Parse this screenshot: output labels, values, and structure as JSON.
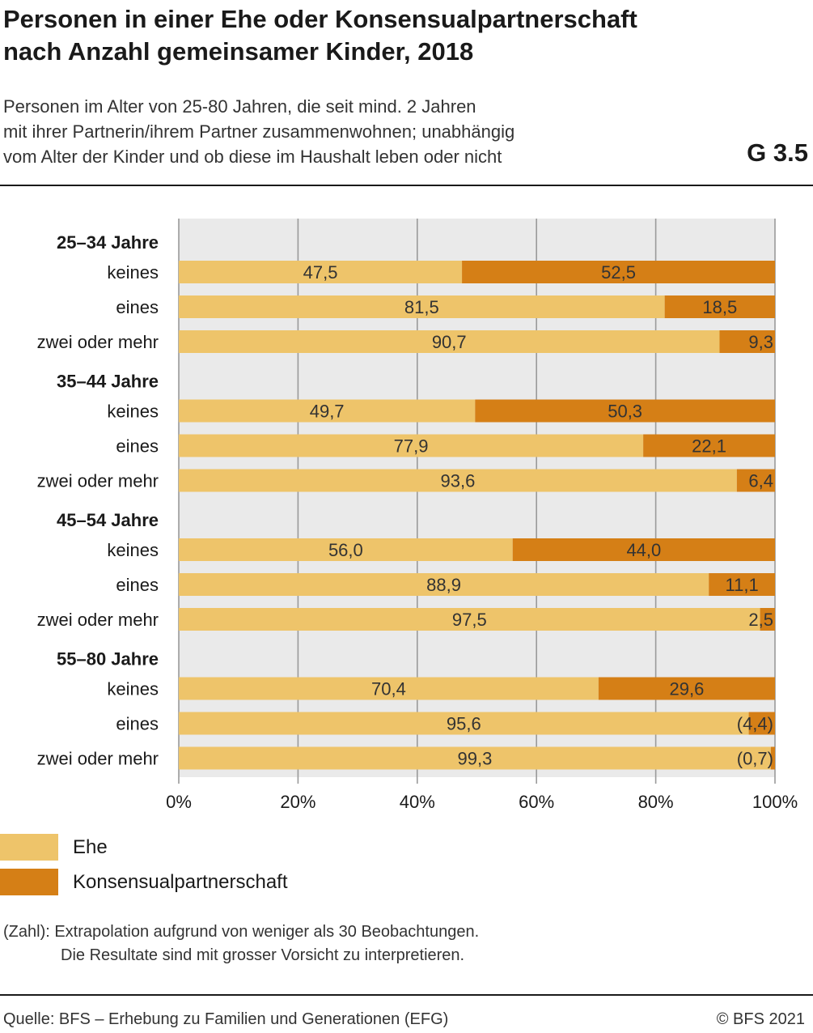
{
  "title_lines": [
    "Personen in einer Ehe oder Konsensualpartnerschaft",
    "nach Anzahl gemeinsamer Kinder, 2018"
  ],
  "subtitle_lines": [
    "Personen im Alter von 25-80 Jahren, die seit mind. 2 Jahren",
    "mit ihrer Partnerin/ihrem Partner zusammenwohnen; unabhängig",
    "vom Alter der Kinder und ob diese im Haushalt leben oder nicht"
  ],
  "chart_code": "G 3.5",
  "colors": {
    "ehe": "#eec46a",
    "konsensual": "#d57f16",
    "plot_bg": "#eaeaea",
    "grid": "#9a9a9a"
  },
  "chart_data": {
    "type": "bar",
    "orientation": "horizontal",
    "stacked": true,
    "xlim": [
      0,
      100
    ],
    "x_ticks": [
      "0%",
      "20%",
      "40%",
      "60%",
      "80%",
      "100%"
    ],
    "grid": true,
    "groups": [
      {
        "label": "25–34 Jahre",
        "rows": [
          {
            "label": "keines",
            "values": [
              47.5,
              52.5
            ],
            "labels": [
              "47,5",
              "52,5"
            ]
          },
          {
            "label": "eines",
            "values": [
              81.5,
              18.5
            ],
            "labels": [
              "81,5",
              "18,5"
            ]
          },
          {
            "label": "zwei oder mehr",
            "values": [
              90.7,
              9.3
            ],
            "labels": [
              "90,7",
              "9,3"
            ]
          }
        ]
      },
      {
        "label": "35–44 Jahre",
        "rows": [
          {
            "label": "keines",
            "values": [
              49.7,
              50.3
            ],
            "labels": [
              "49,7",
              "50,3"
            ]
          },
          {
            "label": "eines",
            "values": [
              77.9,
              22.1
            ],
            "labels": [
              "77,9",
              "22,1"
            ]
          },
          {
            "label": "zwei oder mehr",
            "values": [
              93.6,
              6.4
            ],
            "labels": [
              "93,6",
              "6,4"
            ]
          }
        ]
      },
      {
        "label": "45–54 Jahre",
        "rows": [
          {
            "label": "keines",
            "values": [
              56.0,
              44.0
            ],
            "labels": [
              "56,0",
              "44,0"
            ]
          },
          {
            "label": "eines",
            "values": [
              88.9,
              11.1
            ],
            "labels": [
              "88,9",
              "11,1"
            ]
          },
          {
            "label": "zwei oder mehr",
            "values": [
              97.5,
              2.5
            ],
            "labels": [
              "97,5",
              "2,5"
            ]
          }
        ]
      },
      {
        "label": "55–80 Jahre",
        "rows": [
          {
            "label": "keines",
            "values": [
              70.4,
              29.6
            ],
            "labels": [
              "70,4",
              "29,6"
            ]
          },
          {
            "label": "eines",
            "values": [
              95.6,
              4.4
            ],
            "labels": [
              "95,6",
              "(4,4)"
            ]
          },
          {
            "label": "zwei oder mehr",
            "values": [
              99.3,
              0.7
            ],
            "labels": [
              "99,3",
              "(0,7)"
            ]
          }
        ]
      }
    ],
    "series": [
      {
        "name": "Ehe"
      },
      {
        "name": "Konsensualpartnerschaft"
      }
    ],
    "legend_position": "bottom-left"
  },
  "note_lines": [
    "(Zahl): Extrapolation aufgrund von weniger als 30 Beobachtungen.",
    "Die Resultate sind mit grosser Vorsicht zu interpretieren."
  ],
  "footer": {
    "source": "Quelle: BFS – Erhebung zu Familien und Generationen (EFG)",
    "copyright": "© BFS 2021"
  }
}
